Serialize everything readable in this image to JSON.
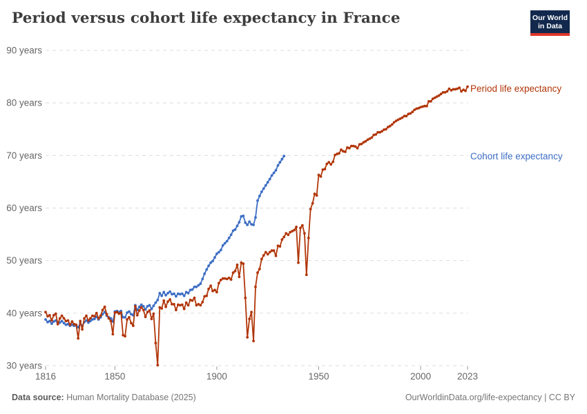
{
  "header": {
    "title": "Period versus cohort life expectancy in France",
    "logo": {
      "line1": "Our World",
      "line2": "in Data"
    }
  },
  "footer": {
    "source_label": "Data source:",
    "source_value": " Human Mortality Database (2025)",
    "right": "OurWorldinData.org/life-expectancy | CC BY"
  },
  "colors": {
    "period": "#b13507",
    "cohort": "#3c6dc4",
    "grid": "#dcdcdc",
    "tick": "#999999",
    "tick_text": "#666666",
    "logo_bg": "#12294d",
    "logo_stripe": "#e0362c"
  },
  "chart_data": {
    "type": "line",
    "title": "Period versus cohort life expectancy in France",
    "xlabel": "",
    "ylabel": "years",
    "xlim": [
      1816,
      2023
    ],
    "ylim": [
      30,
      90
    ],
    "grid": "horizontal-dashed",
    "legend_position": "right-of-line-ends",
    "x_ticks": [
      1816,
      1850,
      1900,
      1950,
      2000,
      2023
    ],
    "y_tick_values": [
      30,
      40,
      50,
      60,
      70,
      80,
      90
    ],
    "y_tick_suffix": " years",
    "series": [
      {
        "name": "Cohort life expectancy",
        "color": "#3c6dc4",
        "start_year": 1816,
        "values": [
          38.8,
          38.3,
          38.5,
          38.0,
          38.4,
          38.6,
          38.0,
          38.2,
          38.5,
          38.1,
          37.8,
          37.9,
          37.6,
          37.8,
          37.6,
          37.7,
          37.3,
          38.1,
          37.6,
          38.3,
          38.6,
          38.2,
          38.5,
          38.8,
          38.9,
          39.3,
          38.8,
          39.2,
          39.8,
          40.2,
          39.5,
          39.2,
          39.0,
          38.4,
          40.3,
          40.4,
          40.2,
          40.4,
          39.2,
          39.2,
          40.1,
          40.3,
          39.8,
          39.6,
          41.5,
          40.6,
          41.2,
          41.6,
          41.3,
          40.7,
          41.3,
          41.5,
          40.8,
          41.4,
          42.0,
          42.5,
          43.8,
          43.3,
          44.0,
          43.4,
          43.8,
          44.1,
          43.6,
          43.7,
          43.2,
          43.7,
          43.6,
          43.7,
          43.3,
          44.0,
          43.8,
          44.4,
          44.5,
          45.0,
          45.0,
          45.3,
          45.6,
          46.5,
          47.5,
          48.3,
          49.0,
          49.6,
          49.9,
          50.6,
          51.3,
          51.6,
          52.0,
          52.9,
          53.3,
          53.7,
          54.3,
          54.9,
          55.7,
          55.9,
          56.6,
          57.3,
          58.4,
          58.5,
          57.2,
          56.8,
          57.4,
          56.9,
          56.8,
          58.2,
          61.4,
          62.3,
          63.1,
          63.7,
          64.3,
          64.9,
          65.5,
          66.2,
          66.7,
          67.2,
          68.1,
          68.7,
          69.3,
          69.9
        ]
      },
      {
        "name": "Period life expectancy",
        "color": "#b13507",
        "start_year": 1816,
        "values": [
          40.2,
          39.4,
          39.6,
          38.6,
          39.6,
          39.9,
          37.9,
          39.0,
          39.5,
          39.0,
          38.5,
          38.6,
          37.8,
          38.4,
          37.9,
          37.8,
          35.2,
          38.5,
          36.9,
          39.0,
          39.5,
          38.6,
          39.0,
          39.5,
          39.4,
          40.0,
          39.0,
          39.5,
          40.6,
          41.2,
          39.8,
          39.0,
          38.5,
          36.0,
          40.1,
          40.2,
          39.9,
          40.1,
          35.8,
          35.6,
          38.8,
          39.2,
          38.1,
          37.6,
          41.3,
          39.6,
          40.5,
          41.1,
          40.6,
          39.3,
          40.2,
          40.5,
          38.9,
          39.9,
          34.3,
          30.1,
          41.1,
          40.9,
          42.4,
          41.2,
          42.2,
          42.6,
          41.7,
          41.7,
          40.6,
          41.6,
          41.5,
          41.6,
          40.8,
          42.0,
          41.5,
          42.5,
          42.4,
          42.9,
          41.5,
          41.7,
          41.5,
          42.1,
          43.2,
          43.3,
          44.6,
          45.2,
          44.2,
          44.4,
          44.0,
          45.7,
          46.3,
          46.6,
          46.6,
          46.5,
          46.7,
          46.4,
          47.7,
          48.0,
          49.2,
          46.9,
          49.6,
          49.4,
          42.9,
          35.4,
          38.9,
          40.2,
          34.7,
          45.0,
          47.7,
          48.4,
          50.3,
          51.0,
          51.6,
          51.2,
          51.6,
          51.9,
          51.9,
          50.9,
          52.8,
          52.7,
          54.0,
          54.5,
          55.2,
          54.9,
          55.4,
          55.6,
          55.8,
          56.4,
          49.6,
          56.2,
          56.7,
          55.2,
          47.3,
          54.3,
          59.8,
          60.9,
          62.7,
          62.4,
          66.3,
          66.0,
          67.3,
          67.4,
          68.4,
          68.7,
          68.3,
          68.8,
          70.1,
          70.3,
          70.4,
          71.1,
          70.8,
          70.7,
          71.5,
          71.4,
          71.8,
          71.8,
          71.7,
          71.4,
          72.1,
          72.2,
          72.5,
          72.7,
          73.0,
          73.2,
          73.4,
          73.9,
          74.0,
          74.4,
          74.4,
          74.6,
          74.9,
          75.0,
          75.4,
          75.6,
          75.9,
          76.3,
          76.6,
          76.8,
          77.0,
          77.2,
          77.5,
          77.5,
          77.9,
          78.0,
          78.3,
          78.7,
          78.9,
          79.0,
          79.2,
          79.3,
          79.4,
          79.4,
          80.3,
          80.3,
          80.8,
          81.0,
          81.2,
          81.4,
          81.7,
          82.0,
          82.0,
          82.2,
          82.7,
          82.4,
          82.6,
          82.6,
          82.7,
          82.9,
          82.2,
          82.5,
          82.3,
          83.1
        ]
      }
    ]
  }
}
